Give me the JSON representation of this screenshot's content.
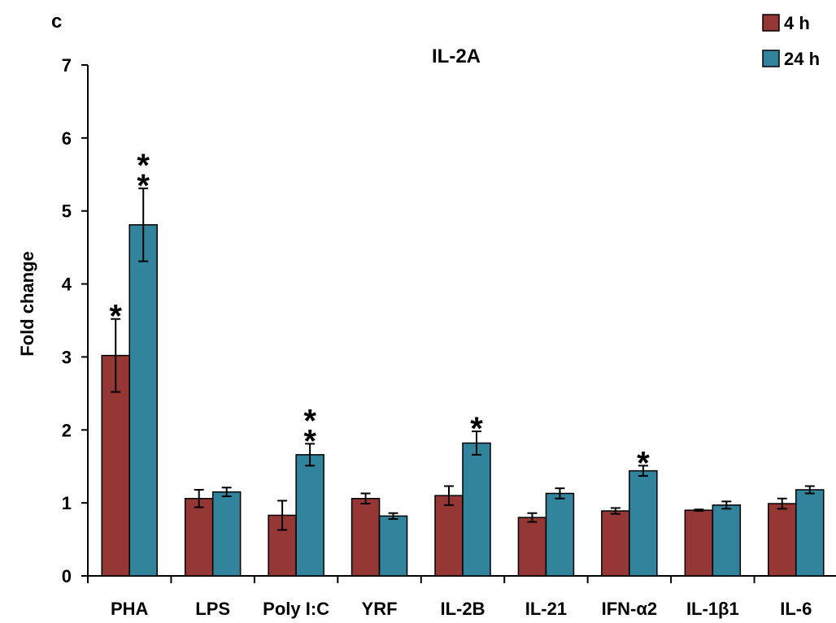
{
  "panel_label": "c",
  "chart_data": {
    "type": "bar",
    "title": "IL-2A",
    "xlabel": "",
    "ylabel": "Fold change",
    "ylim": [
      0,
      7
    ],
    "yticks": [
      0,
      1,
      2,
      3,
      4,
      5,
      6,
      7
    ],
    "grid": false,
    "legend_position": "top-right",
    "categories": [
      "PHA",
      "LPS",
      "Poly I:C",
      "YRF",
      "IL-2B",
      "IL-21",
      "IFN-α2",
      "IL-1β1",
      "IL-6"
    ],
    "series": [
      {
        "name": "4 h",
        "color": "#953735",
        "values": [
          3.02,
          1.06,
          0.83,
          1.06,
          1.1,
          0.8,
          0.89,
          0.9,
          0.99
        ],
        "errors": [
          0.5,
          0.12,
          0.2,
          0.07,
          0.13,
          0.06,
          0.04,
          0.01,
          0.07
        ],
        "significance": [
          "*",
          "",
          "",
          "",
          "",
          "",
          "",
          "",
          ""
        ]
      },
      {
        "name": "24 h",
        "color": "#31849B",
        "values": [
          4.81,
          1.15,
          1.66,
          0.82,
          1.82,
          1.13,
          1.44,
          0.97,
          1.18
        ],
        "errors": [
          0.5,
          0.06,
          0.15,
          0.04,
          0.16,
          0.07,
          0.07,
          0.05,
          0.05
        ],
        "significance": [
          "**",
          "",
          "**",
          "",
          "*",
          "",
          "*",
          "",
          ""
        ]
      }
    ]
  }
}
